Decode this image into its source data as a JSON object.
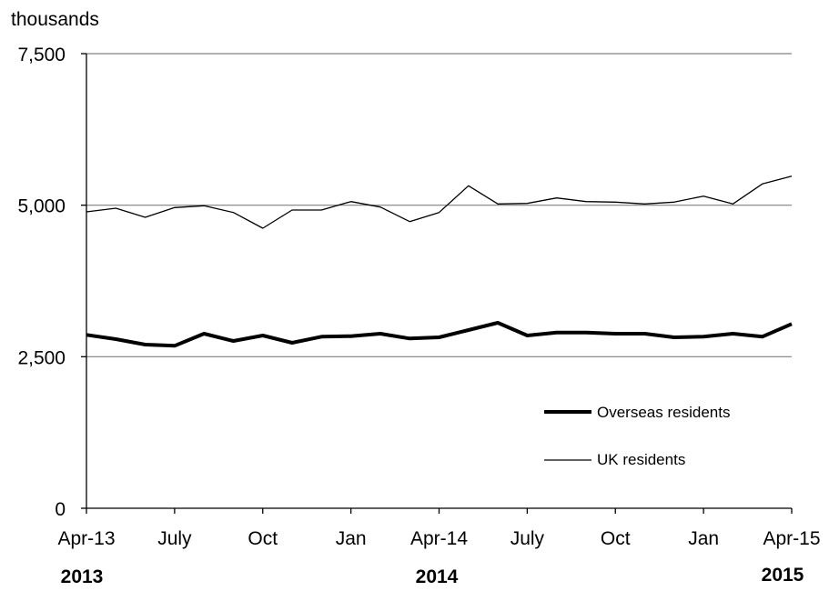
{
  "chart_data": {
    "type": "line",
    "unit_label": "thousands",
    "ylim": [
      0,
      7500
    ],
    "yticks": [
      0,
      2500,
      5000,
      7500
    ],
    "ytick_labels": [
      "0",
      "2,500",
      "5,000",
      "7,500"
    ],
    "grid": true,
    "legend_position": "bottom-right",
    "x_tick_labels": [
      "Apr-13",
      "July",
      "Oct",
      "Jan",
      "Apr-14",
      "July",
      "Oct",
      "Jan",
      "Apr-15"
    ],
    "x_tick_index": [
      0,
      3,
      6,
      9,
      12,
      15,
      18,
      21,
      24
    ],
    "year_labels": [
      "2013",
      "2014",
      "2015"
    ],
    "categories": [
      "Apr-13",
      "May-13",
      "Jun-13",
      "Jul-13",
      "Aug-13",
      "Sep-13",
      "Oct-13",
      "Nov-13",
      "Dec-13",
      "Jan-14",
      "Feb-14",
      "Mar-14",
      "Apr-14",
      "May-14",
      "Jun-14",
      "Jul-14",
      "Aug-14",
      "Sep-14",
      "Oct-14",
      "Nov-14",
      "Dec-14",
      "Jan-15",
      "Feb-15",
      "Mar-15",
      "Apr-15"
    ],
    "series": [
      {
        "name": "Overseas residents",
        "color": "#000000",
        "weight": "thick",
        "values": [
          2860,
          2790,
          2700,
          2680,
          2880,
          2760,
          2850,
          2730,
          2830,
          2840,
          2880,
          2800,
          2820,
          2940,
          3060,
          2850,
          2900,
          2900,
          2880,
          2880,
          2820,
          2830,
          2880,
          2830,
          3040
        ]
      },
      {
        "name": "UK residents",
        "color": "#000000",
        "weight": "thin",
        "values": [
          4890,
          4950,
          4800,
          4960,
          4990,
          4880,
          4620,
          4920,
          4920,
          5060,
          4970,
          4730,
          4880,
          5320,
          5020,
          5030,
          5120,
          5060,
          5050,
          5020,
          5050,
          5150,
          5020,
          5350,
          5480
        ]
      }
    ]
  }
}
